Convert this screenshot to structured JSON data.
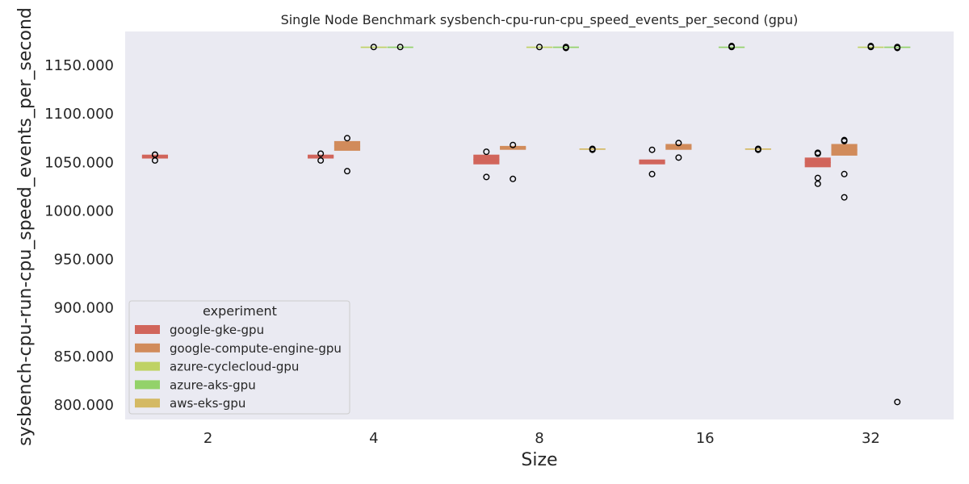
{
  "chart_data": {
    "type": "box",
    "title": "Single Node Benchmark sysbench-cpu-run-cpu_speed_events_per_second (gpu)",
    "xlabel": "Size",
    "ylabel": "sysbench-cpu-run-cpu_speed_events_per_second",
    "categories": [
      "2",
      "4",
      "8",
      "16",
      "32"
    ],
    "ylim": [
      785,
      1185
    ],
    "yticks": [
      800,
      850,
      900,
      950,
      1000,
      1050,
      1100,
      1150
    ],
    "ytick_labels": [
      "800.000",
      "850.000",
      "900.000",
      "950.000",
      "1000.000",
      "1050.000",
      "1100.000",
      "1150.000"
    ],
    "grid": false,
    "legend": {
      "title": "experiment",
      "position": "lower-left"
    },
    "series": [
      {
        "name": "google-gke-gpu",
        "color": "#d1655b",
        "boxes": [
          {
            "category": "2",
            "q1": 1054,
            "q3": 1058,
            "median": 1056,
            "outliers": [
              1058,
              1058,
              1052
            ]
          },
          {
            "category": "4",
            "q1": 1054,
            "q3": 1058,
            "median": 1056,
            "outliers": [
              1059,
              1052
            ]
          },
          {
            "category": "8",
            "q1": 1048,
            "q3": 1058,
            "median": 1053,
            "outliers": [
              1061,
              1035
            ]
          },
          {
            "category": "16",
            "q1": 1048,
            "q3": 1053,
            "median": 1050,
            "outliers": [
              1063,
              1038
            ]
          },
          {
            "category": "32",
            "q1": 1045,
            "q3": 1055,
            "median": 1050,
            "outliers": [
              1059,
              1060,
              1034,
              1028
            ]
          }
        ]
      },
      {
        "name": "google-compute-engine-gpu",
        "color": "#d18b5b",
        "boxes": [
          {
            "category": "4",
            "q1": 1062,
            "q3": 1072,
            "median": 1067,
            "outliers": [
              1075,
              1041
            ]
          },
          {
            "category": "8",
            "q1": 1063,
            "q3": 1067,
            "median": 1065,
            "outliers": [
              1068,
              1033
            ]
          },
          {
            "category": "16",
            "q1": 1063,
            "q3": 1069,
            "median": 1066,
            "outliers": [
              1070,
              1055
            ]
          },
          {
            "category": "32",
            "q1": 1057,
            "q3": 1069,
            "median": 1063,
            "outliers": [
              1072,
              1073,
              1038,
              1014
            ]
          }
        ]
      },
      {
        "name": "azure-cyclecloud-gpu",
        "color": "#bfd264",
        "boxes": [
          {
            "category": "4",
            "q1": 1169,
            "q3": 1169,
            "median": 1169,
            "outliers": [
              1169
            ]
          },
          {
            "category": "8",
            "q1": 1169,
            "q3": 1169,
            "median": 1169,
            "outliers": [
              1169
            ]
          },
          {
            "category": "32",
            "q1": 1169,
            "q3": 1169,
            "median": 1169,
            "outliers": [
              1169,
              1170
            ]
          }
        ]
      },
      {
        "name": "azure-aks-gpu",
        "color": "#93d26a",
        "boxes": [
          {
            "category": "4",
            "q1": 1169,
            "q3": 1169,
            "median": 1169,
            "outliers": [
              1169
            ]
          },
          {
            "category": "8",
            "q1": 1169,
            "q3": 1169,
            "median": 1169,
            "outliers": [
              1169,
              1168
            ]
          },
          {
            "category": "16",
            "q1": 1169,
            "q3": 1169,
            "median": 1169,
            "outliers": [
              1170,
              1169
            ]
          },
          {
            "category": "32",
            "q1": 1169,
            "q3": 1169,
            "median": 1169,
            "outliers": [
              1169,
              1168,
              803
            ]
          }
        ]
      },
      {
        "name": "aws-eks-gpu",
        "color": "#d4b964",
        "boxes": [
          {
            "category": "8",
            "q1": 1063,
            "q3": 1064,
            "median": 1064,
            "outliers": [
              1064,
              1063
            ]
          },
          {
            "category": "16",
            "q1": 1063,
            "q3": 1064,
            "median": 1064,
            "outliers": [
              1064,
              1063
            ]
          }
        ]
      }
    ]
  }
}
